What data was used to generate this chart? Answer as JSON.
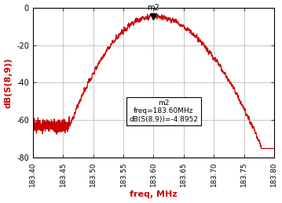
{
  "title": "",
  "xlabel": "freq, MHz",
  "ylabel": "dB(S(8,9))",
  "xlim": [
    183.4,
    183.8
  ],
  "ylim": [
    -80,
    0
  ],
  "xticks": [
    183.4,
    183.45,
    183.5,
    183.55,
    183.6,
    183.65,
    183.7,
    183.75,
    183.8
  ],
  "yticks": [
    -80,
    -60,
    -40,
    -20,
    0
  ],
  "peak_freq": 183.6,
  "peak_db": -4.8952,
  "line_color": "#cc0000",
  "annotation_text": "m2\nfreq=183.60MHz\ndB(S(8,9))=-4.8952",
  "marker_label": "m2",
  "xlabel_color": "#cc0000",
  "ylabel_color": "#cc0000",
  "background_color": "#ffffff",
  "grid_color": "#b0b0b0",
  "bw_gaussian": 0.135,
  "noise_amplitude": 1.8,
  "noise_seed": 17
}
